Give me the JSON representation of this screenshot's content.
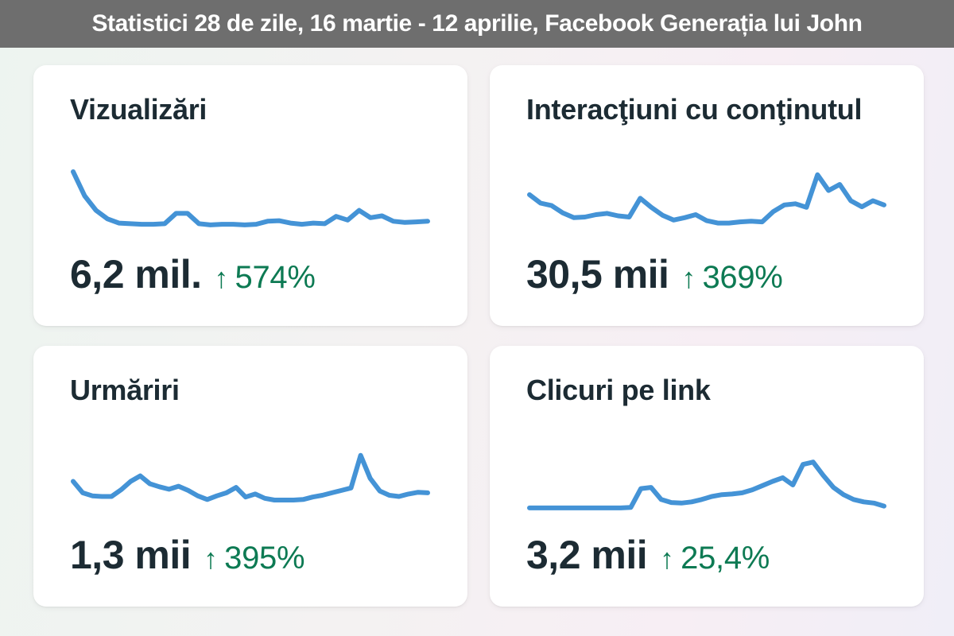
{
  "header": {
    "title": "Statistici 28 de zile,  16 martie - 12 aprilie, Facebook Generația lui John"
  },
  "colors": {
    "topbar_bg": "#6e6e6e",
    "line_blue": "#4493d6",
    "positive_green": "#0d7a53",
    "text_dark": "#1c2b33",
    "card_bg": "#ffffff"
  },
  "trend_arrow": "↑",
  "cards": [
    {
      "title": "Vizualizări",
      "value": "6,2 mil.",
      "trend": "574%",
      "chart_data": {
        "type": "line",
        "period": "28 de zile, 16 martie - 12 aprilie",
        "legend": "none",
        "axes": "hidden",
        "values": [
          100,
          60,
          36,
          22,
          15,
          14,
          13,
          13,
          14,
          31,
          31,
          14,
          12,
          13,
          13,
          12,
          13,
          18,
          19,
          15,
          13,
          15,
          14,
          26,
          20,
          36,
          24,
          27,
          18,
          16,
          17,
          18
        ]
      }
    },
    {
      "title": "Interacţiuni cu conţinutul",
      "value": "30,5 mii",
      "trend": "369%",
      "chart_data": {
        "type": "line",
        "period": "28 de zile, 16 martie - 12 aprilie",
        "legend": "none",
        "axes": "hidden",
        "values": [
          62,
          48,
          44,
          32,
          24,
          25,
          29,
          31,
          27,
          25,
          56,
          41,
          28,
          20,
          24,
          29,
          19,
          15,
          15,
          17,
          18,
          17,
          34,
          45,
          47,
          41,
          95,
          69,
          79,
          52,
          42,
          52,
          45
        ]
      }
    },
    {
      "title": "Urmăriri",
      "value": "1,3 mii",
      "trend": "395%",
      "chart_data": {
        "type": "line",
        "period": "28 de zile, 16 martie - 12 aprilie",
        "legend": "none",
        "axes": "hidden",
        "values": [
          52,
          33,
          28,
          27,
          27,
          38,
          52,
          61,
          48,
          43,
          39,
          44,
          37,
          28,
          22,
          28,
          33,
          42,
          26,
          31,
          24,
          21,
          21,
          21,
          22,
          26,
          29,
          33,
          37,
          41,
          95,
          57,
          36,
          29,
          27,
          31,
          34,
          33
        ]
      }
    },
    {
      "title": "Clicuri pe link",
      "value": "3,2 mii",
      "trend": "25,4%",
      "chart_data": {
        "type": "line",
        "period": "28 de zile, 16 martie - 12 aprilie",
        "legend": "none",
        "axes": "hidden",
        "values": [
          8,
          8,
          8,
          8,
          8,
          8,
          8,
          8,
          8,
          8,
          9,
          40,
          42,
          22,
          17,
          16,
          18,
          22,
          27,
          30,
          31,
          33,
          38,
          45,
          52,
          58,
          46,
          80,
          84,
          62,
          42,
          30,
          22,
          18,
          16,
          11
        ]
      }
    }
  ]
}
